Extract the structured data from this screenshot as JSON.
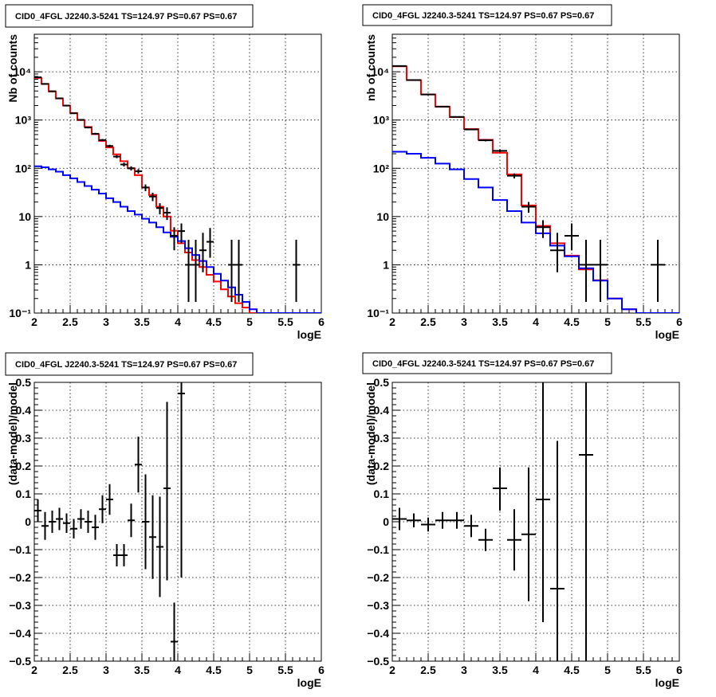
{
  "chart_data": [
    {
      "type": "line",
      "title": "CID0_4FGL J2240.3-5241 TS=124.97 PS=0.67 PS=0.67",
      "xlabel": "logE",
      "ylabel": "Nb of counts",
      "xlim": [
        2,
        6
      ],
      "ylim": [
        0.1,
        60000
      ],
      "yscale": "log",
      "grid": true,
      "x_ticks": [
        2,
        2.5,
        3,
        3.5,
        4,
        4.5,
        5,
        5.5,
        6
      ],
      "x_tick_labels": [
        "2",
        "2.5",
        "3",
        "3.5",
        "4",
        "4.5",
        "5",
        "5.5",
        "6"
      ],
      "y_ticks": [
        0.1,
        1,
        10,
        100,
        1000,
        10000
      ],
      "y_tick_labels": [
        "10⁻¹",
        "1",
        "10",
        "10²",
        "10³",
        "10⁴"
      ],
      "bin_width": 0.1,
      "series": [
        {
          "color": "#ff0000",
          "style": "step",
          "x": [
            2.05,
            2.15,
            2.25,
            2.35,
            2.45,
            2.55,
            2.65,
            2.75,
            2.85,
            2.95,
            3.05,
            3.15,
            3.25,
            3.35,
            3.45,
            3.55,
            3.65,
            3.75,
            3.85,
            3.95,
            4.05,
            4.15,
            4.25,
            4.35,
            4.45,
            4.55,
            4.65,
            4.75,
            4.85,
            4.95,
            5.05,
            5.15,
            5.25,
            5.35,
            5.45,
            5.55,
            5.65,
            5.75,
            5.85,
            5.95
          ],
          "y": [
            7500,
            5600,
            3900,
            2800,
            2000,
            1400,
            1000,
            720,
            510,
            370,
            270,
            195,
            140,
            100,
            72,
            40,
            28,
            16,
            10,
            5.1,
            2.8,
            1.8,
            1.25,
            0.9,
            0.62,
            0.45,
            0.31,
            0.22,
            0.16,
            0.13,
            0.1,
            0.1,
            0.1,
            0.1,
            0.1,
            0.1,
            0.1,
            0.1,
            0.1,
            0.1
          ]
        },
        {
          "color": "#0000ff",
          "style": "step",
          "x": [
            2.05,
            2.15,
            2.25,
            2.35,
            2.45,
            2.55,
            2.65,
            2.75,
            2.85,
            2.95,
            3.05,
            3.15,
            3.25,
            3.35,
            3.45,
            3.55,
            3.65,
            3.75,
            3.85,
            3.95,
            4.05,
            4.15,
            4.25,
            4.35,
            4.45,
            4.55,
            4.65,
            4.75,
            4.85,
            4.95,
            5.05,
            5.15,
            5.25,
            5.35,
            5.45,
            5.55,
            5.65,
            5.75,
            5.85,
            5.95
          ],
          "y": [
            110,
            105,
            95,
            85,
            72,
            62,
            52,
            43,
            36,
            30,
            24,
            20,
            16,
            13,
            11,
            9,
            7.5,
            6,
            4.7,
            3.8,
            3.1,
            2.2,
            1.6,
            1.2,
            0.9,
            0.65,
            0.47,
            0.34,
            0.24,
            0.17,
            0.12,
            0.1,
            0.1,
            0.1,
            0.1,
            0.1,
            0.1,
            0.1,
            0.1,
            0.1
          ]
        },
        {
          "color": "#000000",
          "style": "points",
          "x": [
            2.05,
            2.15,
            2.25,
            2.35,
            2.45,
            2.55,
            2.65,
            2.75,
            2.85,
            2.95,
            3.05,
            3.15,
            3.25,
            3.35,
            3.45,
            3.55,
            3.65,
            3.75,
            3.85,
            3.95,
            4.05,
            4.15,
            4.25,
            4.35,
            4.45,
            4.75,
            4.85,
            5.65
          ],
          "y": [
            7700,
            5600,
            3950,
            2820,
            1990,
            1380,
            1010,
            700,
            520,
            385,
            290,
            175,
            120,
            100,
            87,
            40,
            26,
            15,
            12,
            4,
            5,
            1,
            1,
            2,
            3,
            1,
            1,
            1
          ],
          "err_low": [
            88,
            75,
            63,
            53,
            45,
            37,
            32,
            26,
            23,
            20,
            17,
            13,
            11,
            10,
            9.3,
            6.3,
            5.1,
            3.9,
            3.5,
            2,
            2.2,
            0.83,
            0.83,
            1.3,
            1.6,
            0.83,
            0.83,
            0.83
          ],
          "err_high": [
            88,
            75,
            63,
            53,
            45,
            37,
            32,
            26,
            23,
            20,
            17,
            13,
            11,
            10,
            9.3,
            6.3,
            5.1,
            3.9,
            3.5,
            2,
            2.2,
            2.3,
            2.3,
            2.6,
            2.8,
            2.3,
            2.3,
            2.3
          ]
        }
      ]
    },
    {
      "type": "line",
      "title": "CID0_4FGL J2240.3-5241 TS=124.97 PS=0.67 PS=0.67",
      "xlabel": "logE",
      "ylabel": "nb of counts",
      "xlim": [
        2,
        6
      ],
      "ylim": [
        0.1,
        60000
      ],
      "yscale": "log",
      "grid": true,
      "x_ticks": [
        2,
        2.5,
        3,
        3.5,
        4,
        4.5,
        5,
        5.5,
        6
      ],
      "x_tick_labels": [
        "2",
        "2.5",
        "3",
        "3.5",
        "4",
        "4.5",
        "5",
        "5.5",
        "6"
      ],
      "y_ticks": [
        0.1,
        1,
        10,
        100,
        1000,
        10000
      ],
      "y_tick_labels": [
        "10⁻¹",
        "1",
        "10",
        "10²",
        "10³",
        "10⁴"
      ],
      "bin_width": 0.2,
      "series": [
        {
          "color": "#ff0000",
          "style": "step",
          "x": [
            2.1,
            2.3,
            2.5,
            2.7,
            2.9,
            3.1,
            3.3,
            3.5,
            3.7,
            3.9,
            4.1,
            4.3,
            4.5,
            4.7,
            4.9,
            5.1,
            5.3,
            5.5,
            5.7,
            5.9
          ],
          "y": [
            13000,
            6700,
            3400,
            1900,
            1150,
            650,
            390,
            210,
            75,
            17,
            6.4,
            2.8,
            1.55,
            0.8,
            0.48,
            0.2,
            0.12,
            0.1,
            0.1,
            0.1
          ]
        },
        {
          "color": "#0000ff",
          "style": "step",
          "x": [
            2.1,
            2.3,
            2.5,
            2.7,
            2.9,
            3.1,
            3.3,
            3.5,
            3.7,
            3.9,
            4.1,
            4.3,
            4.5,
            4.7,
            4.9,
            5.1,
            5.3,
            5.5,
            5.7,
            5.9
          ],
          "y": [
            220,
            200,
            165,
            125,
            95,
            60,
            40,
            22,
            13,
            7.5,
            4.5,
            2.5,
            1.5,
            0.85,
            0.47,
            0.2,
            0.12,
            0.1,
            0.1,
            0.1
          ]
        },
        {
          "color": "#000000",
          "style": "points",
          "x": [
            2.1,
            2.3,
            2.5,
            2.7,
            2.9,
            3.1,
            3.3,
            3.5,
            3.7,
            3.9,
            4.1,
            4.3,
            4.5,
            4.7,
            4.9,
            5.7
          ],
          "y": [
            13200,
            6750,
            3380,
            1900,
            1160,
            640,
            380,
            230,
            70,
            16,
            6,
            2,
            4,
            1,
            1,
            1
          ],
          "err_low": [
            115,
            82,
            58,
            44,
            34,
            25,
            19,
            15,
            8.4,
            4,
            2.4,
            1.3,
            2,
            0.83,
            0.83,
            0.83
          ],
          "err_high": [
            115,
            82,
            58,
            44,
            34,
            25,
            19,
            15,
            8.4,
            4,
            2.4,
            2.6,
            3.2,
            2.3,
            2.3,
            2.3
          ]
        }
      ]
    },
    {
      "type": "scatter",
      "title": "CID0_4FGL J2240.3-5241 TS=124.97 PS=0.67 PS=0.67",
      "xlabel": "logE",
      "ylabel": "(data-model)/model",
      "xlim": [
        2,
        6
      ],
      "ylim": [
        -0.5,
        0.5
      ],
      "grid": true,
      "x_ticks": [
        2,
        2.5,
        3,
        3.5,
        4,
        4.5,
        5,
        5.5,
        6
      ],
      "x_tick_labels": [
        "2",
        "2.5",
        "3",
        "3.5",
        "4",
        "4.5",
        "5",
        "5.5",
        "6"
      ],
      "y_ticks": [
        -0.5,
        -0.4,
        -0.3,
        -0.2,
        -0.1,
        0,
        0.1,
        0.2,
        0.3,
        0.4,
        0.5
      ],
      "y_tick_labels": [
        "−0.5",
        "−0.4",
        "−0.3",
        "−0.2",
        "−0.1",
        "0",
        "0.1",
        "0.2",
        "0.3",
        "0.4",
        "0.5"
      ],
      "bin_width": 0.1,
      "series": [
        {
          "color": "#000000",
          "style": "points",
          "x": [
            2.05,
            2.15,
            2.25,
            2.35,
            2.45,
            2.55,
            2.65,
            2.75,
            2.85,
            2.95,
            3.05,
            3.15,
            3.25,
            3.35,
            3.45,
            3.55,
            3.65,
            3.75,
            3.85,
            3.95,
            4.05
          ],
          "y": [
            0.04,
            -0.015,
            0.0,
            0.01,
            -0.005,
            -0.025,
            0.01,
            0.0,
            -0.02,
            0.045,
            0.08,
            -0.12,
            -0.12,
            0.005,
            0.205,
            0.0,
            -0.055,
            -0.09,
            0.12,
            -0.43,
            0.46
          ],
          "err_low": [
            0.04,
            0.05,
            0.04,
            0.04,
            0.035,
            0.035,
            0.035,
            0.04,
            0.045,
            0.05,
            0.055,
            0.04,
            0.04,
            0.06,
            0.1,
            0.17,
            0.15,
            0.18,
            0.33,
            0.13,
            0.66
          ],
          "err_high": [
            0.04,
            0.05,
            0.04,
            0.04,
            0.035,
            0.035,
            0.035,
            0.04,
            0.045,
            0.05,
            0.055,
            0.04,
            0.04,
            0.06,
            0.1,
            0.17,
            0.15,
            0.18,
            0.31,
            0.14,
            0.04
          ]
        }
      ]
    },
    {
      "type": "scatter",
      "title": "CID0_4FGL J2240.3-5241 TS=124.97 PS=0.67 PS=0.67",
      "xlabel": "logE",
      "ylabel": "(data-model)/model",
      "xlim": [
        2,
        6
      ],
      "ylim": [
        -0.5,
        0.5
      ],
      "grid": true,
      "x_ticks": [
        2,
        2.5,
        3,
        3.5,
        4,
        4.5,
        5,
        5.5,
        6
      ],
      "x_tick_labels": [
        "2",
        "2.5",
        "3",
        "3.5",
        "4",
        "4.5",
        "5",
        "5.5",
        "6"
      ],
      "y_ticks": [
        -0.5,
        -0.4,
        -0.3,
        -0.2,
        -0.1,
        0,
        0.1,
        0.2,
        0.3,
        0.4,
        0.5
      ],
      "y_tick_labels": [
        "−0.5",
        "−0.4",
        "−0.3",
        "−0.2",
        "−0.1",
        "0",
        "0.1",
        "0.2",
        "0.3",
        "0.4",
        "0.5"
      ],
      "bin_width": 0.2,
      "series": [
        {
          "color": "#000000",
          "style": "points",
          "x": [
            2.1,
            2.3,
            2.5,
            2.7,
            2.9,
            3.1,
            3.3,
            3.5,
            3.7,
            3.9,
            4.1,
            4.3,
            4.7
          ],
          "y": [
            0.01,
            0.005,
            -0.01,
            0.005,
            0.005,
            -0.015,
            -0.065,
            0.12,
            -0.065,
            -0.045,
            0.08,
            -0.24,
            0.24
          ],
          "err_low": [
            0.04,
            0.025,
            0.025,
            0.03,
            0.03,
            0.04,
            0.04,
            0.08,
            0.11,
            0.24,
            0.44,
            0.26,
            0.74
          ],
          "err_high": [
            0.04,
            0.025,
            0.025,
            0.03,
            0.03,
            0.04,
            0.04,
            0.075,
            0.11,
            0.24,
            0.42,
            0.53,
            0.26
          ]
        }
      ]
    }
  ]
}
